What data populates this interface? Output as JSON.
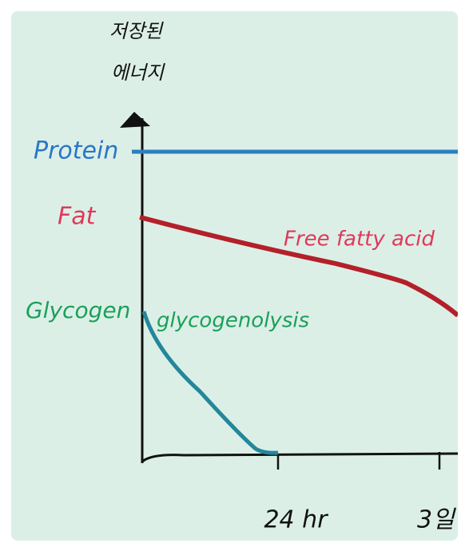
{
  "y_axis_label": [
    "저장된",
    "에너지"
  ],
  "labels": {
    "protein": "Protein",
    "fat": "Fat",
    "glycogen": "Glycogen",
    "free_fatty_acid": "Free fatty acid",
    "glycogenolysis": "glycogenolysis"
  },
  "x_ticks": [
    "24 hr",
    "3일"
  ]
}
